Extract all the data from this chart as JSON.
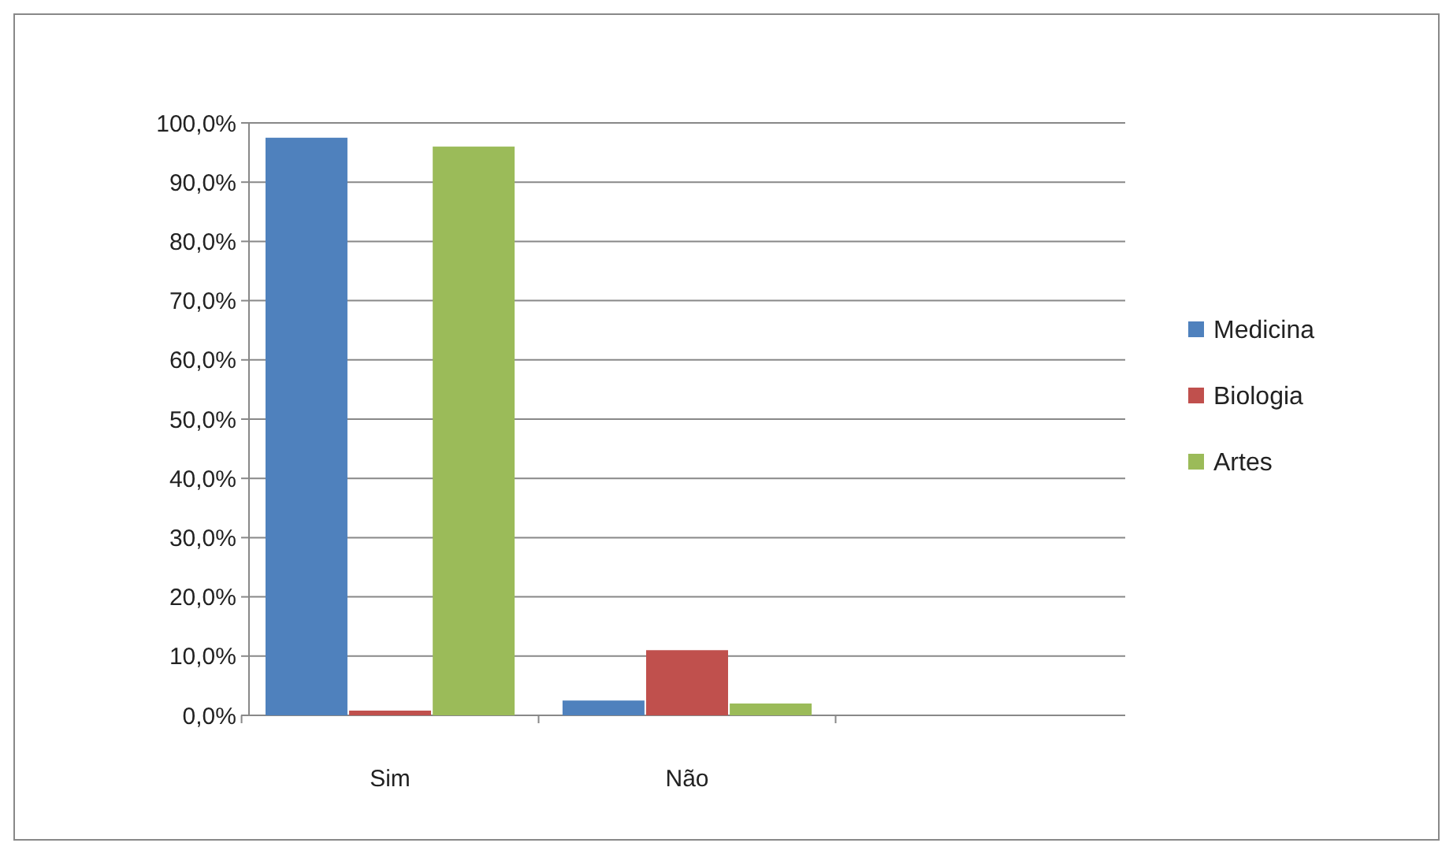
{
  "chart_data": {
    "type": "bar",
    "categories": [
      "Sim",
      "Não",
      null
    ],
    "series": [
      {
        "name": "Medicina",
        "color": "#4f81bd",
        "values": [
          97.5,
          2.5,
          null
        ]
      },
      {
        "name": "Biologia",
        "color": "#c0504d",
        "values": [
          0.8,
          11,
          null
        ]
      },
      {
        "name": "Artes",
        "color": "#9bbb59",
        "values": [
          96,
          2,
          null
        ]
      }
    ],
    "ylim": [
      0,
      100
    ],
    "yticks": [
      {
        "value": 0,
        "label": "0,0%"
      },
      {
        "value": 10,
        "label": "10,0%"
      },
      {
        "value": 20,
        "label": "20,0%"
      },
      {
        "value": 30,
        "label": "30,0%"
      },
      {
        "value": 40,
        "label": "40,0%"
      },
      {
        "value": 50,
        "label": "50,0%"
      },
      {
        "value": 60,
        "label": "60,0%"
      },
      {
        "value": 70,
        "label": "70,0%"
      },
      {
        "value": 80,
        "label": "80,0%"
      },
      {
        "value": 90,
        "label": "90,0%"
      },
      {
        "value": 100,
        "label": "100,0%"
      }
    ],
    "grid": "y",
    "legend": "right"
  }
}
